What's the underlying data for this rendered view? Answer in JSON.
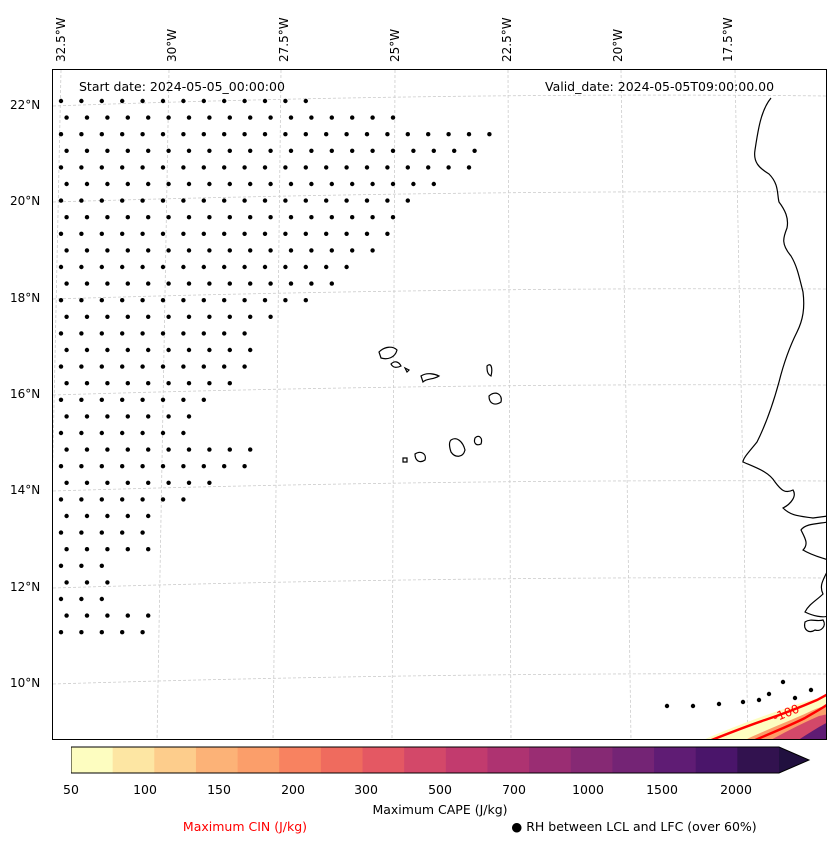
{
  "map": {
    "start_date": "Start date: 2024-05-05_00:00:00",
    "valid_date": "Valid_date: 2024-05-05T09:00:00.00",
    "longitude_labels": [
      "32.5°W",
      "30°W",
      "27.5°W",
      "25°W",
      "22.5°W",
      "20°W",
      "17.5°W"
    ],
    "latitude_labels": [
      "22°N",
      "20°N",
      "18°N",
      "16°N",
      "14°N",
      "12°N",
      "10°N"
    ],
    "cin_contour_label": "-100",
    "coast_color": "#000000",
    "grid_color": "#cccccc",
    "cin_color": "#ff0000"
  },
  "colorbar": {
    "label": "Maximum CAPE (J/kg)",
    "tick_labels": [
      "50",
      "100",
      "150",
      "200",
      "300",
      "500",
      "700",
      "1000",
      "1500",
      "2000"
    ],
    "colors": [
      "#fdfdc0",
      "#fde6a3",
      "#fdcd8c",
      "#fcb277",
      "#fb9e6a",
      "#f88260",
      "#ef6b5e",
      "#e45863",
      "#d34869",
      "#c23b6e",
      "#ae3371",
      "#9a2d73",
      "#862974",
      "#742475",
      "#5f1c74",
      "#4a156a",
      "#32124f",
      "#21103f"
    ]
  },
  "legend": {
    "cin_label": "Maximum CIN (J/kg)",
    "rh_label": "RH between LCL and LFC (over 60%)",
    "rh_symbol": "●"
  }
}
